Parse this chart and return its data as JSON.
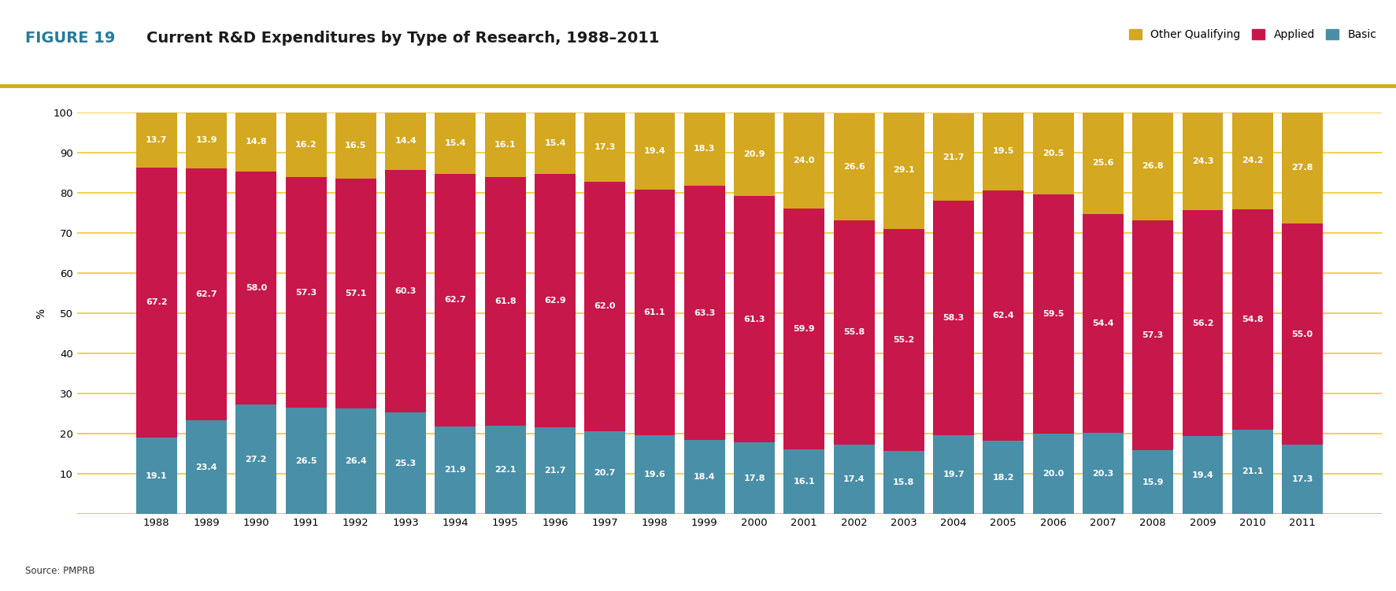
{
  "title_figure": "FIGURE 19",
  "title_main": "Current R&D Expenditures by Type of Research, 1988–2011",
  "source": "Source: PMPRB",
  "ylabel": "%",
  "years": [
    1988,
    1989,
    1990,
    1991,
    1992,
    1993,
    1994,
    1995,
    1996,
    1997,
    1998,
    1999,
    2000,
    2001,
    2002,
    2003,
    2004,
    2005,
    2006,
    2007,
    2008,
    2009,
    2010,
    2011
  ],
  "basic": [
    19.1,
    23.4,
    27.2,
    26.5,
    26.4,
    25.3,
    21.9,
    22.1,
    21.7,
    20.7,
    19.6,
    18.4,
    17.8,
    16.1,
    17.4,
    15.8,
    19.7,
    18.2,
    20.0,
    20.3,
    15.9,
    19.4,
    21.1,
    17.3
  ],
  "applied": [
    67.2,
    62.7,
    58.0,
    57.3,
    57.1,
    60.3,
    62.7,
    61.8,
    62.9,
    62.0,
    61.1,
    63.3,
    61.3,
    59.9,
    55.8,
    55.2,
    58.3,
    62.4,
    59.5,
    54.4,
    57.3,
    56.2,
    54.8,
    55.0
  ],
  "other": [
    13.7,
    13.9,
    14.8,
    16.2,
    16.5,
    14.4,
    15.4,
    16.1,
    15.4,
    17.3,
    19.4,
    18.3,
    20.9,
    24.0,
    26.6,
    29.1,
    21.7,
    19.5,
    20.5,
    25.6,
    26.8,
    24.3,
    24.2,
    27.8
  ],
  "color_basic": "#4a8fa8",
  "color_applied": "#c8174a",
  "color_other": "#d4a820",
  "color_grid": "#f0c830",
  "bar_width": 0.82,
  "ylim": [
    0,
    100
  ],
  "yticks": [
    0,
    10,
    20,
    30,
    40,
    50,
    60,
    70,
    80,
    90,
    100
  ],
  "title_color_fig": "#2a7a9a",
  "title_color_main": "#1a1a1a",
  "legend_labels": [
    "Other Qualifying",
    "Applied",
    "Basic"
  ],
  "legend_colors": [
    "#d4a820",
    "#c8174a",
    "#4a8fa8"
  ],
  "top_line_color": "#d4a820",
  "figsize": [
    17.73,
    7.51
  ],
  "dpi": 100,
  "label_fontsize": 8.0
}
